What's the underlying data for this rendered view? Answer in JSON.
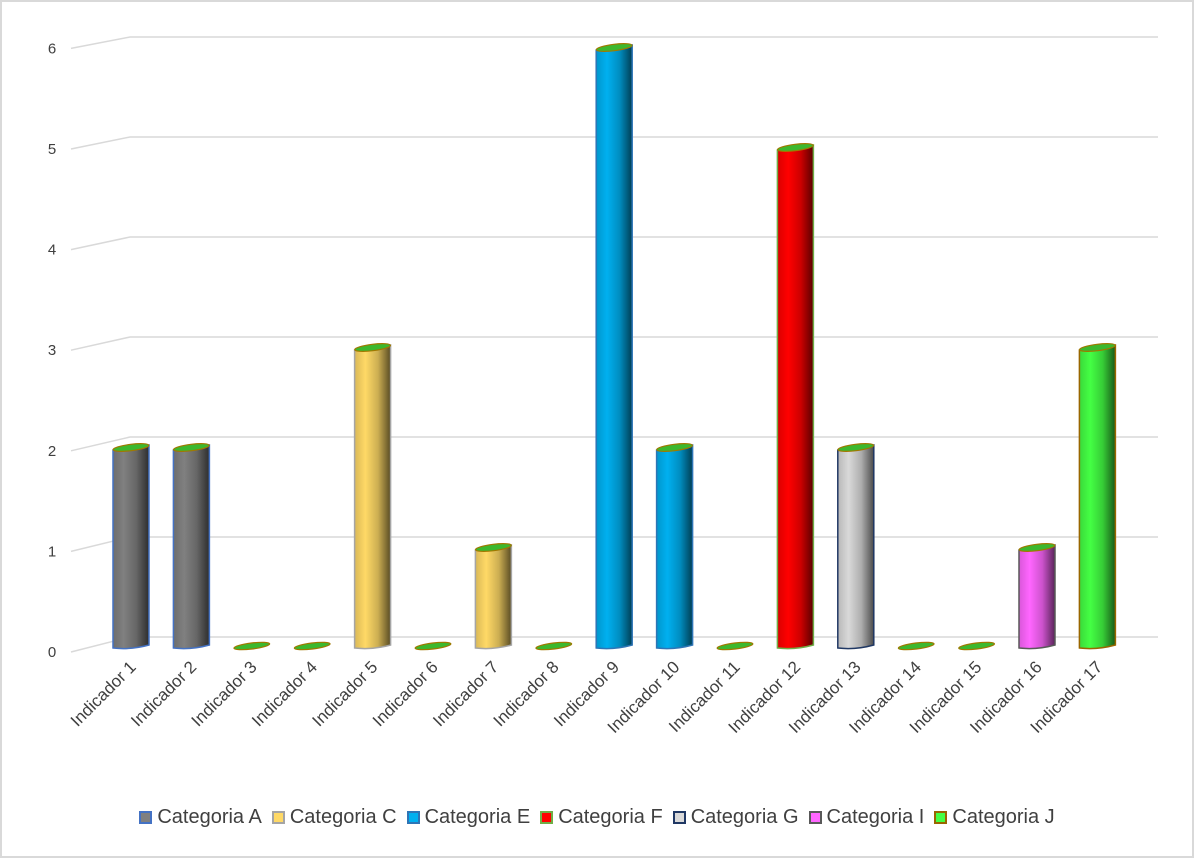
{
  "chart_data": {
    "type": "bar",
    "subtype": "3d-cylinder",
    "title": "",
    "xlabel": "",
    "ylabel": "",
    "ylim": [
      0,
      6
    ],
    "yticks": [
      0,
      1,
      2,
      3,
      4,
      5,
      6
    ],
    "grid": true,
    "legend_position": "bottom",
    "categories": [
      "Indicador 1",
      "Indicador 2",
      "Indicador 3",
      "Indicador 4",
      "Indicador 5",
      "Indicador 6",
      "Indicador 7",
      "Indicador 8",
      "Indicador 9",
      "Indicador 10",
      "Indicador 11",
      "Indicador 12",
      "Indicador 13",
      "Indicador 14",
      "Indicador 15",
      "Indicador 16",
      "Indicador 17"
    ],
    "values": [
      2,
      2,
      0,
      0,
      3,
      0,
      1,
      0,
      6,
      2,
      0,
      5,
      2,
      0,
      0,
      1,
      3
    ],
    "bar_series": [
      "Categoria A",
      "Categoria A",
      null,
      null,
      "Categoria C",
      null,
      "Categoria C",
      null,
      "Categoria E",
      "Categoria E",
      null,
      "Categoria F",
      "Categoria G",
      null,
      null,
      "Categoria I",
      "Categoria J"
    ],
    "series": [
      {
        "name": "Categoria A",
        "color": "#808080",
        "border": "#4472c4"
      },
      {
        "name": "Categoria C",
        "color": "#ffd966",
        "border": "#a5a5a5"
      },
      {
        "name": "Categoria E",
        "color": "#00b0f0",
        "border": "#2e75b6"
      },
      {
        "name": "Categoria F",
        "color": "#ff0000",
        "border": "#70ad47"
      },
      {
        "name": "Categoria G",
        "color": "#d9d9d9",
        "border": "#203864"
      },
      {
        "name": "Categoria I",
        "color": "#ff66ff",
        "border": "#595959"
      },
      {
        "name": "Categoria J",
        "color": "#44ff44",
        "border": "#996600"
      }
    ],
    "top_cap_color": "#3cb82e",
    "top_cap_border": "#a07800"
  }
}
